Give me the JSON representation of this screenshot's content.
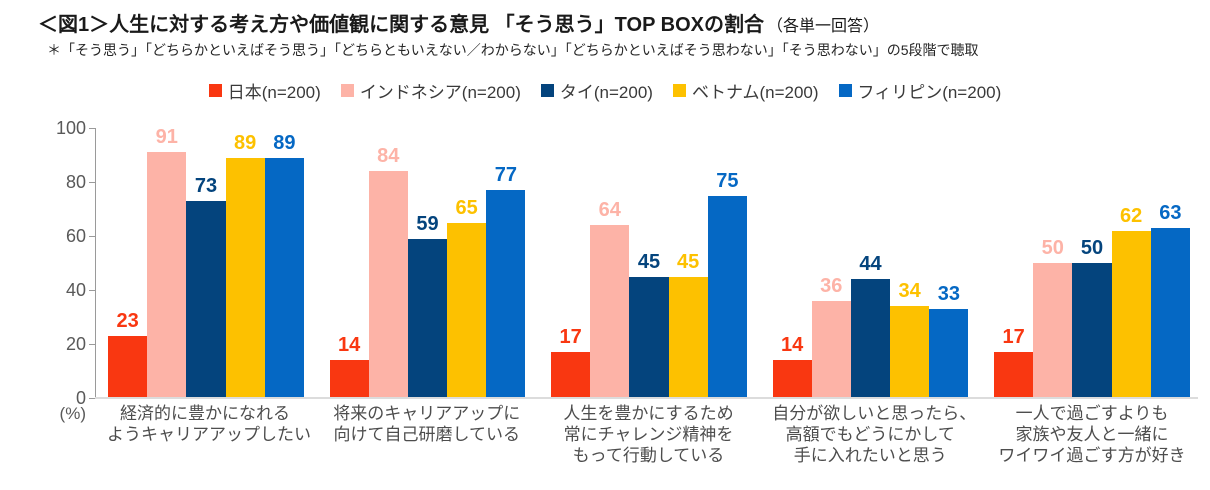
{
  "header": {
    "title": "＜図1＞人生に対する考え方や価値観に関する意見 「そう思う」TOP BOXの割合",
    "suffix": "（各単一回答）",
    "note": "＊「そう思う」「どちらかといえばそう思う」「どちらともいえない／わからない」「どちらかといえばそう思わない」「そう思わない」の5段階で聴取"
  },
  "chart_data": {
    "type": "bar",
    "title": "人生に対する考え方や価値観に関する意見 「そう思う」TOP BOXの割合（各単一回答）",
    "ylabel": "(%)",
    "ylim": [
      0,
      100
    ],
    "yticks": [
      0,
      20,
      40,
      60,
      80,
      100
    ],
    "grid": false,
    "legend_position": "top",
    "value_labels": true,
    "categories": [
      [
        "経済的に豊かになれる",
        "ようキャリアアップしたい"
      ],
      [
        "将来のキャリアアップに",
        "向けて自己研磨している"
      ],
      [
        "人生を豊かにするため",
        "常にチャレンジ精神を",
        "もって行動している"
      ],
      [
        "自分が欲しいと思ったら、",
        "高額でもどうにかして",
        "手に入れたいと思う"
      ],
      [
        "一人で過ごすよりも",
        "家族や友人と一緒に",
        "ワイワイ過ごす方が好き"
      ]
    ],
    "series": [
      {
        "name": "日本(n=200)",
        "color": "#F93711",
        "values": [
          23,
          14,
          17,
          14,
          17
        ]
      },
      {
        "name": "インドネシア(n=200)",
        "color": "#FDB3A7",
        "values": [
          91,
          84,
          64,
          36,
          50
        ]
      },
      {
        "name": "タイ(n=200)",
        "color": "#04447D",
        "values": [
          73,
          59,
          45,
          44,
          50
        ]
      },
      {
        "name": "ベトナム(n=200)",
        "color": "#FDC100",
        "values": [
          89,
          65,
          45,
          34,
          62
        ]
      },
      {
        "name": "フィリピン(n=200)",
        "color": "#0568C4",
        "values": [
          89,
          77,
          75,
          33,
          63
        ]
      }
    ]
  }
}
